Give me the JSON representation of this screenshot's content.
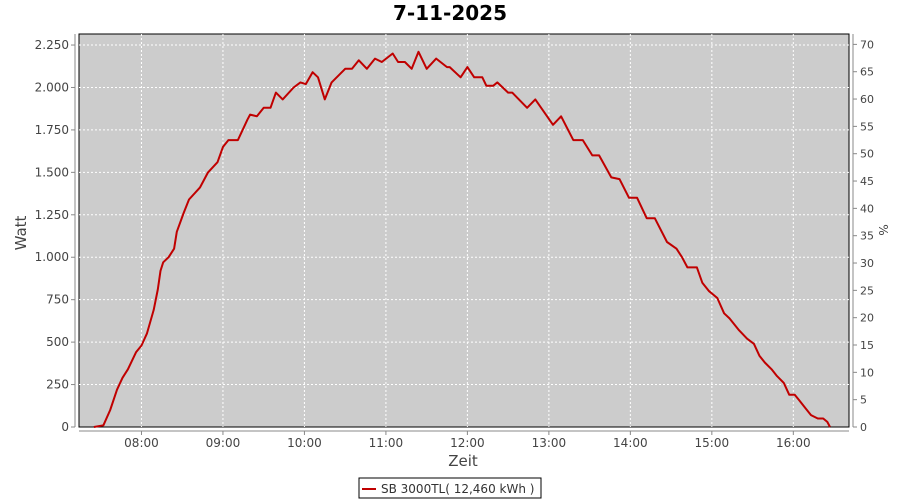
{
  "chart_data": {
    "type": "line",
    "title": "7-11-2025",
    "xlabel": "Zeit",
    "ylabel": "Watt",
    "y2label": "%",
    "xlim": [
      "07:14",
      "16:41"
    ],
    "ylim": [
      0,
      2315
    ],
    "y2lim": [
      0,
      71.9
    ],
    "grid": true,
    "legend_placement": "bottom",
    "background_color": "#cccccc",
    "x_ticks": [
      "08:00",
      "09:00",
      "10:00",
      "11:00",
      "12:00",
      "13:00",
      "14:00",
      "15:00",
      "16:00"
    ],
    "y_ticks": [
      {
        "value": 0,
        "label": "0"
      },
      {
        "value": 250,
        "label": "250"
      },
      {
        "value": 500,
        "label": "500"
      },
      {
        "value": 750,
        "label": "750"
      },
      {
        "value": 1000,
        "label": "1.000"
      },
      {
        "value": 1250,
        "label": "1.250"
      },
      {
        "value": 1500,
        "label": "1.500"
      },
      {
        "value": 1750,
        "label": "1.750"
      },
      {
        "value": 2000,
        "label": "2.000"
      },
      {
        "value": 2250,
        "label": "2.250"
      }
    ],
    "y2_ticks": [
      0,
      5,
      10,
      15,
      20,
      25,
      30,
      35,
      40,
      45,
      50,
      55,
      60,
      65,
      70
    ],
    "series": [
      {
        "name": "SB 3000TL( 12,460 kWh )",
        "color": "#c00000",
        "x": [
          "07:25",
          "07:32",
          "07:37",
          "07:42",
          "07:46",
          "07:50",
          "07:56",
          "08:00",
          "08:04",
          "08:09",
          "08:12",
          "08:14",
          "08:16",
          "08:20",
          "08:24",
          "08:26",
          "08:31",
          "08:35",
          "08:43",
          "08:49",
          "08:56",
          "09:00",
          "09:04",
          "09:11",
          "09:18",
          "09:20",
          "09:25",
          "09:30",
          "09:35",
          "09:39",
          "09:44",
          "09:52",
          "09:57",
          "10:01",
          "10:06",
          "10:10",
          "10:15",
          "10:20",
          "10:30",
          "10:35",
          "10:40",
          "10:46",
          "10:52",
          "10:57",
          "11:05",
          "11:09",
          "11:14",
          "11:19",
          "11:24",
          "11:30",
          "11:37",
          "11:45",
          "11:47",
          "11:55",
          "12:00",
          "12:05",
          "12:11",
          "12:14",
          "12:19",
          "12:22",
          "12:30",
          "12:33",
          "12:44",
          "12:50",
          "13:03",
          "13:09",
          "13:18",
          "13:25",
          "13:32",
          "13:37",
          "13:46",
          "13:52",
          "13:59",
          "14:05",
          "14:12",
          "14:18",
          "14:27",
          "14:34",
          "14:38",
          "14:42",
          "14:49",
          "14:53",
          "14:58",
          "15:04",
          "15:09",
          "15:13",
          "15:20",
          "15:26",
          "15:31",
          "15:35",
          "15:39",
          "15:44",
          "15:48",
          "15:53",
          "15:57",
          "16:01",
          "16:04",
          "16:09",
          "16:13",
          "16:18",
          "16:22",
          "16:25",
          "16:27"
        ],
        "y": [
          0,
          10,
          100,
          220,
          290,
          340,
          440,
          480,
          550,
          690,
          810,
          920,
          970,
          1000,
          1050,
          1150,
          1260,
          1340,
          1410,
          1500,
          1560,
          1650,
          1690,
          1690,
          1810,
          1840,
          1830,
          1880,
          1880,
          1970,
          1930,
          2000,
          2030,
          2020,
          2090,
          2060,
          1930,
          2030,
          2110,
          2110,
          2160,
          2110,
          2170,
          2150,
          2200,
          2150,
          2150,
          2110,
          2210,
          2110,
          2170,
          2120,
          2120,
          2060,
          2120,
          2060,
          2060,
          2010,
          2010,
          2030,
          1970,
          1970,
          1880,
          1930,
          1780,
          1830,
          1690,
          1690,
          1600,
          1600,
          1470,
          1460,
          1350,
          1350,
          1230,
          1230,
          1090,
          1050,
          1000,
          940,
          940,
          850,
          800,
          760,
          670,
          640,
          570,
          520,
          490,
          420,
          380,
          340,
          300,
          260,
          190,
          190,
          160,
          110,
          70,
          50,
          50,
          30,
          0
        ]
      }
    ]
  }
}
